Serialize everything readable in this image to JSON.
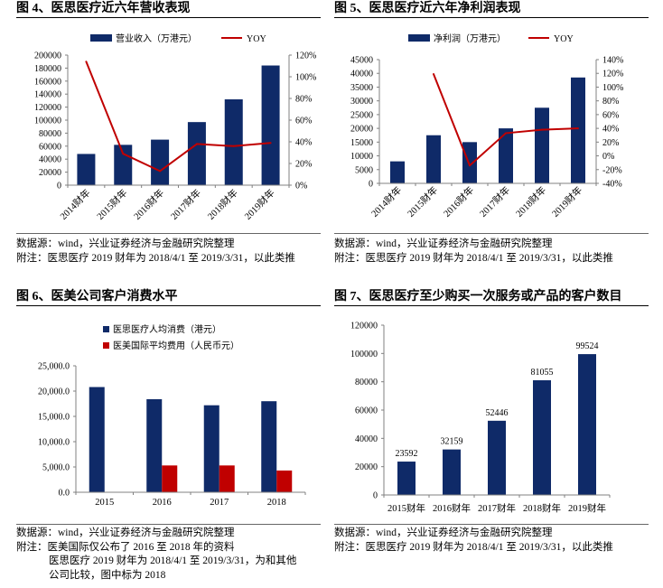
{
  "figures": [
    {
      "footnotes": [
        "数据源：wind，兴业证券经济与金融研究院整理",
        "附注：医思医疗 2019 财年为 2018/4/1 至 2019/3/31，以此类推"
      ]
    },
    {
      "footnotes": [
        "数据源：wind，兴业证券经济与金融研究院整理",
        "附注：医思医疗 2019 财年为 2018/4/1 至 2019/3/31，以此类推"
      ]
    },
    {
      "footnotes": [
        "数据源：wind，兴业证券经济与金融研究院整理",
        "附注：医美国际仅公布了 2016 至 2018 年的资料",
        "医思医疗 2019 财年为 2018/4/1 至 2019/3/31，为和其他",
        "公司比较，图中标为 2018"
      ]
    },
    {
      "footnotes": [
        "数据源：wind，兴业证券经济与金融研究院整理",
        "附注：医思医疗 2019 财年为 2018/4/1 至 2019/3/31，以此类推"
      ]
    }
  ],
  "chart_data": [
    {
      "type": "bar",
      "title": "图 4、医思医疗近六年营收表现",
      "categories": [
        "2014财年",
        "2015财年",
        "2016财年",
        "2017财年",
        "2018财年",
        "2019财年"
      ],
      "series": [
        {
          "name": "营业收入（万港元）",
          "type": "bar",
          "axis": "left",
          "values": [
            48000,
            62000,
            70000,
            97000,
            132000,
            184000
          ],
          "color": "#0f2a68"
        },
        {
          "name": "YOY",
          "type": "line",
          "axis": "right",
          "values": [
            114,
            29,
            13,
            38,
            36,
            39
          ],
          "color": "#c00000"
        }
      ],
      "y_left": {
        "min": 0,
        "max": 200000,
        "tick_labels": [
          "0",
          "20000",
          "40000",
          "60000",
          "80000",
          "100000",
          "120000",
          "140000",
          "160000",
          "180000",
          "200000"
        ]
      },
      "y_right": {
        "min": 0,
        "max": 120,
        "tick_labels": [
          "0%",
          "20%",
          "40%",
          "60%",
          "80%",
          "100%",
          "120%"
        ]
      },
      "legend": "top",
      "grid": false
    },
    {
      "type": "bar",
      "title": "图 5、医思医疗近六年净利润表现",
      "categories": [
        "2014财年",
        "2015财年",
        "2016财年",
        "2017财年",
        "2018财年",
        "2019财年"
      ],
      "series": [
        {
          "name": "净利润（万港元）",
          "type": "bar",
          "axis": "left",
          "values": [
            8000,
            17500,
            15000,
            20000,
            27500,
            38500
          ],
          "color": "#0f2a68"
        },
        {
          "name": "YOY",
          "type": "line",
          "axis": "right",
          "values": [
            null,
            119,
            -14,
            33,
            38,
            40
          ],
          "color": "#c00000"
        }
      ],
      "y_left": {
        "min": 0,
        "max": 45000,
        "tick_labels": [
          "0",
          "5000",
          "10000",
          "15000",
          "20000",
          "25000",
          "30000",
          "35000",
          "40000",
          "45000"
        ]
      },
      "y_right": {
        "min": -40,
        "max": 140,
        "tick_labels": [
          "-40%",
          "-20%",
          "0%",
          "20%",
          "40%",
          "60%",
          "80%",
          "100%",
          "120%",
          "140%"
        ]
      },
      "legend": "top",
      "grid": false
    },
    {
      "type": "bar",
      "title": "图 6、医美公司客户消费水平",
      "categories": [
        "2015",
        "2016",
        "2017",
        "2018"
      ],
      "series": [
        {
          "name": "医思医疗人均消费（港元）",
          "values": [
            20800,
            18400,
            17200,
            18000
          ],
          "color": "#0f2a68"
        },
        {
          "name": "医美国际平均费用（人民币元）",
          "values": [
            null,
            5300,
            5300,
            4300
          ],
          "color": "#c00000"
        }
      ],
      "y_left": {
        "min": 0,
        "max": 25000,
        "tick_labels": [
          "0.0",
          "5,000.0",
          "10,000.0",
          "15,000.0",
          "20,000.0",
          "25,000.0"
        ]
      },
      "legend": "top-left",
      "grid": false
    },
    {
      "type": "bar",
      "title": "图 7、医思医疗至少购买一次服务或产品的客户数目",
      "categories": [
        "2015财年",
        "2016财年",
        "2017财年",
        "2018财年",
        "2019财年"
      ],
      "series": [
        {
          "values": [
            23592,
            32159,
            52446,
            81055,
            99524
          ],
          "color": "#0f2a68"
        }
      ],
      "y_left": {
        "min": 0,
        "max": 120000,
        "tick_labels": [
          "0",
          "20000",
          "40000",
          "60000",
          "80000",
          "100000",
          "120000"
        ]
      },
      "legend": "none",
      "grid": false
    }
  ]
}
